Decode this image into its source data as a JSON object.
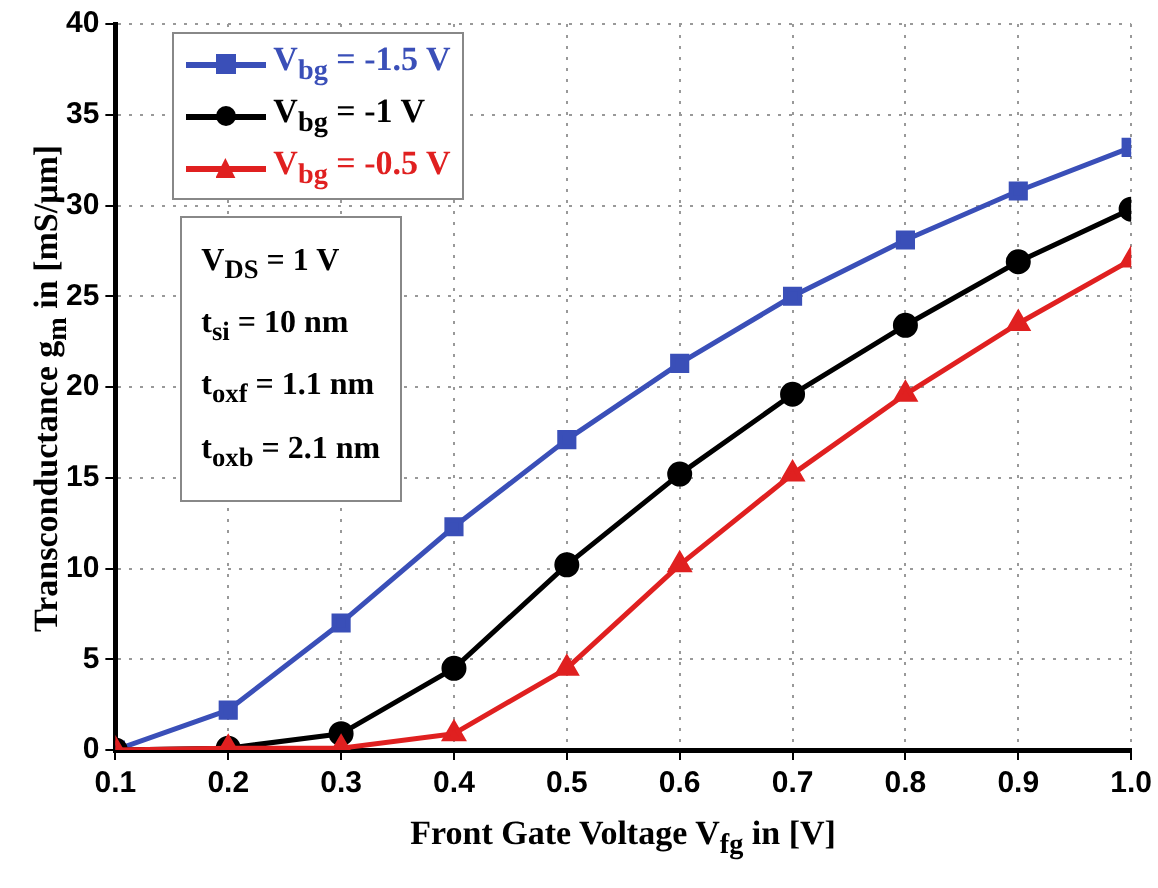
{
  "chart_data": {
    "type": "line",
    "xlabel": "Front Gate Voltage V$_{fg}$ in [V]",
    "ylabel": "Transconductance g$_{m}$ in [mS/μm]",
    "x": [
      0.1,
      0.2,
      0.3,
      0.4,
      0.5,
      0.6,
      0.7,
      0.8,
      0.9,
      1.0
    ],
    "series": [
      {
        "name": "V$_{bg}$ = -1.5 V",
        "color": "#3a4fb8",
        "marker": "square",
        "values": [
          0,
          2.2,
          7,
          12.3,
          17.1,
          21.3,
          25,
          28.1,
          30.8,
          33.2
        ]
      },
      {
        "name": "V$_{bg}$ = -1 V",
        "color": "#000000",
        "marker": "circle",
        "values": [
          0,
          0.1,
          0.9,
          4.5,
          10.2,
          15.2,
          19.6,
          23.4,
          26.9,
          29.8
        ]
      },
      {
        "name": "V$_{bg}$ = -0.5 V",
        "color": "#e02020",
        "marker": "triangle",
        "values": [
          0,
          0.1,
          0.1,
          0.9,
          4.5,
          10.2,
          15.2,
          19.6,
          23.5,
          27
        ]
      }
    ],
    "xlim": [
      0.1,
      1.0
    ],
    "xticks": [
      0.1,
      0.2,
      0.3,
      0.4,
      0.5,
      0.6,
      0.7,
      0.8,
      0.9,
      {
        "value": 1.0,
        "label": "1.0"
      }
    ],
    "ylim": [
      0,
      40
    ],
    "yticks": [
      0,
      5,
      10,
      15,
      20,
      25,
      30,
      35,
      40
    ],
    "grid": true,
    "legend": "top left",
    "line_style": "solid",
    "annotations": [
      "V$_{DS}$ = 1 V",
      "t$_{si}$ = 10 nm",
      "t$_{oxf}$ = 1.1 nm",
      "t$_{oxb}$ = 2.1 nm"
    ]
  }
}
